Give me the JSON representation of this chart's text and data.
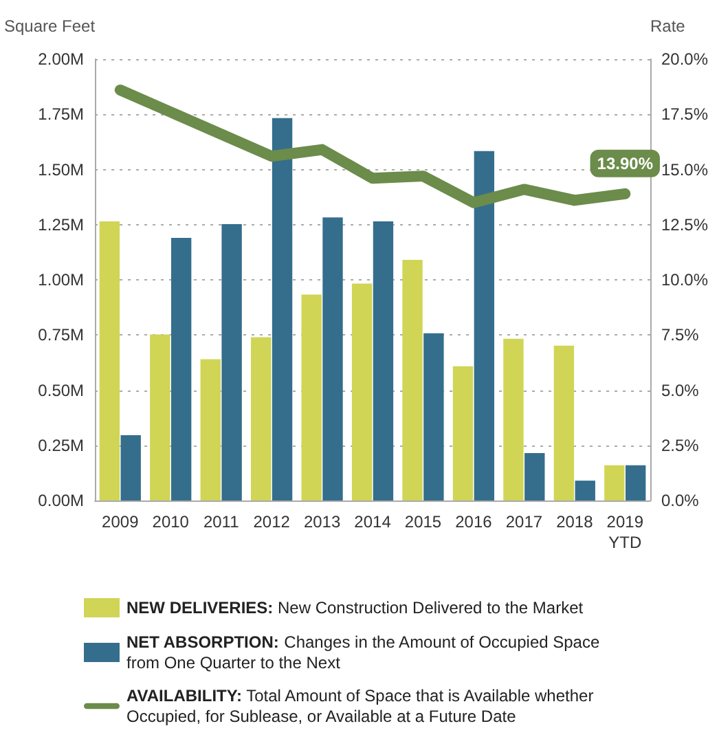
{
  "chart_data": {
    "type": "bar",
    "ylabel": "Square Feet",
    "y2label": "Rate",
    "categories": [
      "2009",
      "2010",
      "2011",
      "2012",
      "2013",
      "2014",
      "2015",
      "2016",
      "2017",
      "2018",
      "2019\nYTD"
    ],
    "series": [
      {
        "name": "NEW DELIVERIES: New Construction Delivered to the Market",
        "color": "#d0d555",
        "values": [
          1.265,
          0.752,
          0.64,
          0.74,
          0.933,
          0.983,
          1.09,
          0.608,
          0.733,
          0.702,
          0.16
        ]
      },
      {
        "name": "NET ABSORPTION: Changes in the Amount of Occupied Space\nfrom One Quarter to the Next",
        "color": "#356e8c",
        "values": [
          0.296,
          1.19,
          1.252,
          1.733,
          1.283,
          1.265,
          0.758,
          1.583,
          0.215,
          0.09,
          0.16
        ]
      },
      {
        "name": "AVAILABILITY: Total Amount of Space that is Available whether\nOccupied, for Sublease, or Available at a Future Date",
        "color": "#6b8c4a",
        "type": "line",
        "axis": "y2",
        "values": [
          18.6,
          17.6,
          16.6,
          15.6,
          15.9,
          14.6,
          14.7,
          13.5,
          14.1,
          13.6,
          13.9
        ],
        "value_labels": [
          null,
          null,
          null,
          null,
          null,
          null,
          null,
          null,
          null,
          null,
          "13.90%"
        ]
      }
    ],
    "ylim": [
      0,
      2
    ],
    "yticks": [
      {
        "value": 0,
        "label": "0.00M"
      },
      {
        "value": 0.25,
        "label": "0.25M"
      },
      {
        "value": 0.5,
        "label": "0.50M"
      },
      {
        "value": 0.75,
        "label": "0.75M"
      },
      {
        "value": 1,
        "label": "1.00M"
      },
      {
        "value": 1.25,
        "label": "1.25M"
      },
      {
        "value": 1.5,
        "label": "1.50M"
      },
      {
        "value": 1.75,
        "label": "1.75M"
      },
      {
        "value": 2,
        "label": "2.00M"
      }
    ],
    "y2lim": [
      0,
      20
    ],
    "y2ticks": [
      {
        "value": 0,
        "label": "0.0%"
      },
      {
        "value": 2.5,
        "label": "2.5%"
      },
      {
        "value": 5,
        "label": "5.0%"
      },
      {
        "value": 7.5,
        "label": "7.5%"
      },
      {
        "value": 10,
        "label": "10.0%"
      },
      {
        "value": 12.5,
        "label": "12.5%"
      },
      {
        "value": 15,
        "label": "15.0%"
      },
      {
        "value": 17.5,
        "label": "17.5%"
      },
      {
        "value": 20,
        "label": "20.0%"
      }
    ],
    "grid": "y",
    "legend": "bottom",
    "marker": "none"
  }
}
